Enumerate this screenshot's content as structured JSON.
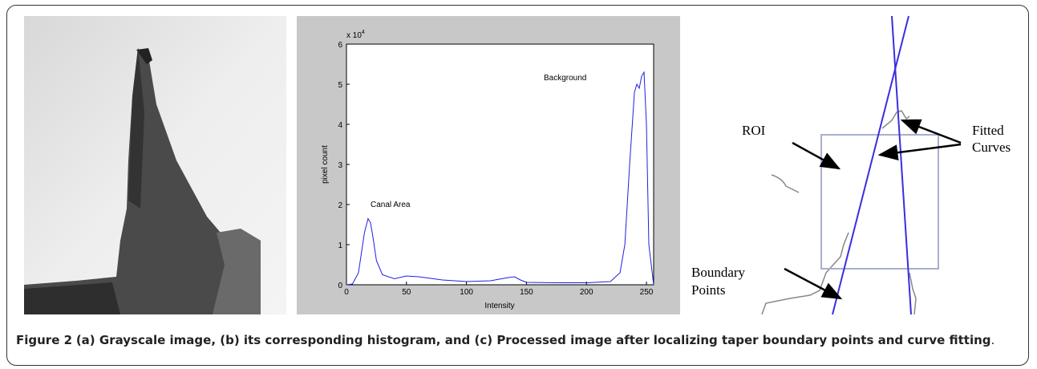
{
  "caption": {
    "label": "Figure 2",
    "text": "(a) Grayscale image, (b) its corresponding histogram, and (c) Processed image after localizing taper boundary points and curve fitting",
    "period": "."
  },
  "panel_c": {
    "annotations": [
      "ROI",
      "Fitted",
      "Curves",
      "Boundary",
      "Points"
    ]
  },
  "chart_data": {
    "type": "line",
    "xlabel": "Intensity",
    "ylabel": "pixel count",
    "y_multiplier": {
      "base": "x 10",
      "exponent": "4"
    },
    "annotations": [
      "Canal Area",
      "Background"
    ],
    "color": "#2020e0",
    "x": [
      0,
      5,
      10,
      15,
      18,
      20,
      22,
      25,
      30,
      40,
      50,
      60,
      80,
      100,
      120,
      135,
      140,
      145,
      150,
      175,
      200,
      220,
      228,
      232,
      236,
      240,
      242,
      244,
      246,
      248,
      250,
      252,
      256
    ],
    "values": [
      0,
      0.02,
      0.3,
      1.3,
      1.65,
      1.55,
      1.2,
      0.6,
      0.25,
      0.15,
      0.22,
      0.2,
      0.12,
      0.08,
      0.1,
      0.18,
      0.2,
      0.12,
      0.06,
      0.05,
      0.05,
      0.08,
      0.3,
      1.0,
      3.0,
      4.8,
      5.0,
      4.9,
      5.2,
      5.3,
      4.0,
      1.0,
      0
    ],
    "xlim": [
      0,
      256
    ],
    "ylim": [
      0,
      6
    ],
    "xticks": [
      0,
      50,
      100,
      150,
      200,
      250
    ],
    "yticks": [
      0,
      1,
      2,
      3,
      4,
      5,
      6
    ]
  }
}
